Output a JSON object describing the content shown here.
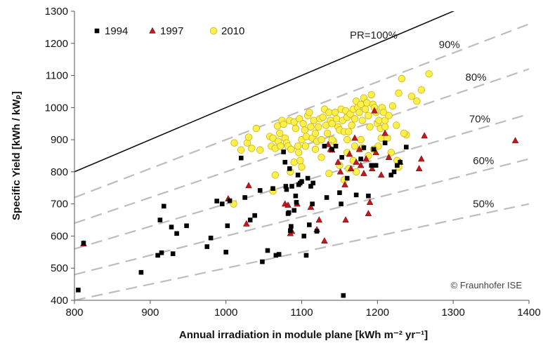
{
  "chart_data": {
    "type": "scatter",
    "xlabel": "Annual irradiation  in module plane [kWh m⁻² yr⁻¹]",
    "ylabel": "Specific Yield  [kWh / kWₚ]",
    "xlim": [
      800,
      1400
    ],
    "ylim": [
      400,
      1300
    ],
    "x_ticks": [
      800,
      900,
      1000,
      1100,
      1200,
      1300,
      1400
    ],
    "y_ticks": [
      400,
      500,
      600,
      700,
      800,
      900,
      1000,
      1100,
      1200,
      1300
    ],
    "grid": false,
    "legend_position": "top-left",
    "copyright": "© Fraunhofer ISE",
    "reference_lines": [
      {
        "label": "PR=100%",
        "pr": 1.0,
        "style": "solid",
        "color": "#111111"
      },
      {
        "label": "90%",
        "pr": 0.9,
        "style": "dashed",
        "color": "#bdbdbd"
      },
      {
        "label": "80%",
        "pr": 0.8,
        "style": "dashed",
        "color": "#bdbdbd"
      },
      {
        "label": "70%",
        "pr": 0.7,
        "style": "dashed",
        "color": "#bdbdbd"
      },
      {
        "label": "60%",
        "pr": 0.6,
        "style": "dashed",
        "color": "#bdbdbd"
      },
      {
        "label": "50%",
        "pr": 0.5,
        "style": "dashed",
        "color": "#bdbdbd"
      }
    ],
    "series": [
      {
        "name": "1994",
        "marker": "square",
        "color": "#000000",
        "points": [
          [
            805,
            432
          ],
          [
            812,
            578
          ],
          [
            888,
            487
          ],
          [
            910,
            540
          ],
          [
            913,
            650
          ],
          [
            915,
            548
          ],
          [
            918,
            693
          ],
          [
            928,
            628
          ],
          [
            930,
            545
          ],
          [
            935,
            608
          ],
          [
            948,
            632
          ],
          [
            975,
            567
          ],
          [
            980,
            594
          ],
          [
            988,
            709
          ],
          [
            995,
            700
          ],
          [
            1000,
            550
          ],
          [
            1002,
            632
          ],
          [
            1005,
            710
          ],
          [
            1020,
            843
          ],
          [
            1025,
            720
          ],
          [
            1032,
            650
          ],
          [
            1038,
            664
          ],
          [
            1045,
            742
          ],
          [
            1048,
            520
          ],
          [
            1055,
            555
          ],
          [
            1062,
            748
          ],
          [
            1066,
            540
          ],
          [
            1070,
            543
          ],
          [
            1076,
            862
          ],
          [
            1078,
            830
          ],
          [
            1079,
            755
          ],
          [
            1080,
            745
          ],
          [
            1082,
            670
          ],
          [
            1083,
            673
          ],
          [
            1084,
            810
          ],
          [
            1085,
            617
          ],
          [
            1086,
            630
          ],
          [
            1087,
            755
          ],
          [
            1090,
            680
          ],
          [
            1092,
            725
          ],
          [
            1093,
            705
          ],
          [
            1095,
            790
          ],
          [
            1096,
            760
          ],
          [
            1098,
            765
          ],
          [
            1100,
            770
          ],
          [
            1103,
            600
          ],
          [
            1106,
            540
          ],
          [
            1108,
            780
          ],
          [
            1110,
            635
          ],
          [
            1112,
            755
          ],
          [
            1114,
            700
          ],
          [
            1115,
            765
          ],
          [
            1120,
            615
          ],
          [
            1130,
            880
          ],
          [
            1133,
            720
          ],
          [
            1140,
            870
          ],
          [
            1145,
            880
          ],
          [
            1150,
            735
          ],
          [
            1152,
            700
          ],
          [
            1153,
            845
          ],
          [
            1155,
            415
          ],
          [
            1160,
            780
          ],
          [
            1172,
            728
          ],
          [
            1178,
            840
          ],
          [
            1182,
            875
          ],
          [
            1188,
            725
          ],
          [
            1192,
            820
          ],
          [
            1195,
            870
          ],
          [
            1198,
            820
          ],
          [
            1210,
            890
          ],
          [
            1218,
            790
          ],
          [
            1222,
            800
          ],
          [
            1226,
            820
          ],
          [
            1230,
            830
          ],
          [
            1238,
            877
          ]
        ]
      },
      {
        "name": "1997",
        "marker": "triangle",
        "color": "#c0181e",
        "points": [
          [
            812,
            576
          ],
          [
            1003,
            716
          ],
          [
            1027,
            638
          ],
          [
            1030,
            757
          ],
          [
            1078,
            700
          ],
          [
            1082,
            696
          ],
          [
            1085,
            608
          ],
          [
            1087,
            615
          ],
          [
            1094,
            700
          ],
          [
            1112,
            690
          ],
          [
            1120,
            620
          ],
          [
            1123,
            650
          ],
          [
            1130,
            585
          ],
          [
            1135,
            885
          ],
          [
            1138,
            870
          ],
          [
            1140,
            868
          ],
          [
            1148,
            830
          ],
          [
            1151,
            800
          ],
          [
            1157,
            760
          ],
          [
            1158,
            650
          ],
          [
            1163,
            855
          ],
          [
            1165,
            810
          ],
          [
            1170,
            905
          ],
          [
            1172,
            830
          ],
          [
            1176,
            870
          ],
          [
            1178,
            820
          ],
          [
            1182,
            795
          ],
          [
            1185,
            840
          ],
          [
            1188,
            670
          ],
          [
            1190,
            705
          ],
          [
            1193,
            810
          ],
          [
            1196,
            990
          ],
          [
            1198,
            860
          ],
          [
            1205,
            790
          ],
          [
            1210,
            920
          ],
          [
            1215,
            845
          ],
          [
            1230,
            830
          ],
          [
            1255,
            810
          ],
          [
            1258,
            840
          ],
          [
            1262,
            912
          ],
          [
            1382,
            897
          ]
        ]
      },
      {
        "name": "2010",
        "marker": "circle",
        "color": "#fff04a",
        "points": [
          [
            1011,
            890
          ],
          [
            1020,
            868
          ],
          [
            1028,
            890
          ],
          [
            1030,
            908
          ],
          [
            1034,
            873
          ],
          [
            1040,
            935
          ],
          [
            1058,
            910
          ],
          [
            1060,
            880
          ],
          [
            1062,
            905
          ],
          [
            1065,
            873
          ],
          [
            1068,
            943
          ],
          [
            1069,
            895
          ],
          [
            1071,
            920
          ],
          [
            1072,
            880
          ],
          [
            1074,
            960
          ],
          [
            1076,
            948
          ],
          [
            1078,
            905
          ],
          [
            1080,
            890
          ],
          [
            1082,
            880
          ],
          [
            1084,
            960
          ],
          [
            1086,
            870
          ],
          [
            1090,
            955
          ],
          [
            1092,
            935
          ],
          [
            1095,
            880
          ],
          [
            1097,
            965
          ],
          [
            1100,
            900
          ],
          [
            1102,
            950
          ],
          [
            1104,
            930
          ],
          [
            1106,
            910
          ],
          [
            1108,
            975
          ],
          [
            1110,
            985
          ],
          [
            1112,
            940
          ],
          [
            1114,
            905
          ],
          [
            1116,
            960
          ],
          [
            1118,
            920
          ],
          [
            1120,
            895
          ],
          [
            1122,
            940
          ],
          [
            1124,
            965
          ],
          [
            1126,
            900
          ],
          [
            1128,
            970
          ],
          [
            1130,
            995
          ],
          [
            1132,
            945
          ],
          [
            1134,
            920
          ],
          [
            1136,
            985
          ],
          [
            1138,
            960
          ],
          [
            1140,
            950
          ],
          [
            1142,
            895
          ],
          [
            1144,
            985
          ],
          [
            1146,
            965
          ],
          [
            1148,
            940
          ],
          [
            1150,
            930
          ],
          [
            1152,
            995
          ],
          [
            1154,
            960
          ],
          [
            1156,
            925
          ],
          [
            1158,
            990
          ],
          [
            1160,
            970
          ],
          [
            1162,
            925
          ],
          [
            1164,
            980
          ],
          [
            1166,
            945
          ],
          [
            1168,
            995
          ],
          [
            1170,
            965
          ],
          [
            1172,
            1020
          ],
          [
            1174,
            1000
          ],
          [
            1176,
            985
          ],
          [
            1178,
            1010
          ],
          [
            1180,
            960
          ],
          [
            1182,
            1030
          ],
          [
            1184,
            995
          ],
          [
            1186,
            1015
          ],
          [
            1188,
            975
          ],
          [
            1190,
            940
          ],
          [
            1192,
            1040
          ],
          [
            1194,
            1010
          ],
          [
            1196,
            1000
          ],
          [
            1198,
            985
          ],
          [
            1200,
            950
          ],
          [
            1202,
            960
          ],
          [
            1204,
            935
          ],
          [
            1206,
            1000
          ],
          [
            1208,
            985
          ],
          [
            1210,
            960
          ],
          [
            1215,
            975
          ],
          [
            1220,
            1005
          ],
          [
            1225,
            945
          ],
          [
            1228,
            1045
          ],
          [
            1232,
            1090
          ],
          [
            1238,
            915
          ],
          [
            1245,
            1035
          ],
          [
            1252,
            1020
          ],
          [
            1258,
            1055
          ],
          [
            1268,
            1105
          ],
          [
            1100,
            815
          ],
          [
            1090,
            830
          ],
          [
            1085,
            800
          ],
          [
            1065,
            790
          ],
          [
            1062,
            740
          ],
          [
            1010,
            700
          ],
          [
            1045,
            868
          ],
          [
            1162,
            810
          ],
          [
            1168,
            835
          ],
          [
            1172,
            800
          ],
          [
            1150,
            820
          ],
          [
            1156,
            775
          ],
          [
            1136,
            795
          ],
          [
            1126,
            845
          ],
          [
            1188,
            850
          ],
          [
            1201,
            880
          ],
          [
            1205,
            905
          ],
          [
            1213,
            905
          ],
          [
            1218,
            860
          ],
          [
            1226,
            835
          ],
          [
            1228,
            815
          ],
          [
            1235,
            920
          ],
          [
            1160,
            900
          ],
          [
            1140,
            900
          ],
          [
            1178,
            900
          ],
          [
            1118,
            870
          ],
          [
            1105,
            880
          ],
          [
            1096,
            860
          ],
          [
            1098,
            835
          ],
          [
            1160,
            860
          ],
          [
            1180,
            875
          ],
          [
            1170,
            880
          ],
          [
            1210,
            940
          ],
          [
            1195,
            870
          ]
        ]
      }
    ]
  }
}
